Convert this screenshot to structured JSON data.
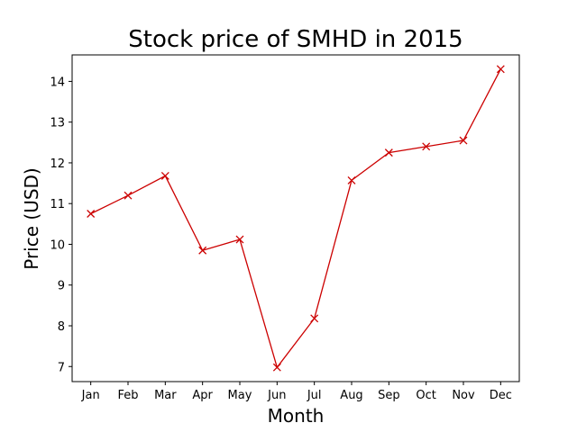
{
  "chart_data": {
    "type": "line",
    "title": "Stock price of SMHD in 2015",
    "xlabel": "Month",
    "ylabel": "Price (USD)",
    "categories": [
      "Jan",
      "Feb",
      "Mar",
      "Apr",
      "May",
      "Jun",
      "Jul",
      "Aug",
      "Sep",
      "Oct",
      "Nov",
      "Dec"
    ],
    "series": [
      {
        "values": [
          10.75,
          11.2,
          11.68,
          9.85,
          10.12,
          6.98,
          8.18,
          11.57,
          12.25,
          12.4,
          12.55,
          14.3
        ],
        "color": "#cc0000",
        "marker": "x"
      }
    ],
    "yticks": [
      7,
      8,
      9,
      10,
      11,
      12,
      13,
      14
    ],
    "ylim": [
      6.63,
      14.65
    ],
    "grid": false,
    "legend": false
  }
}
